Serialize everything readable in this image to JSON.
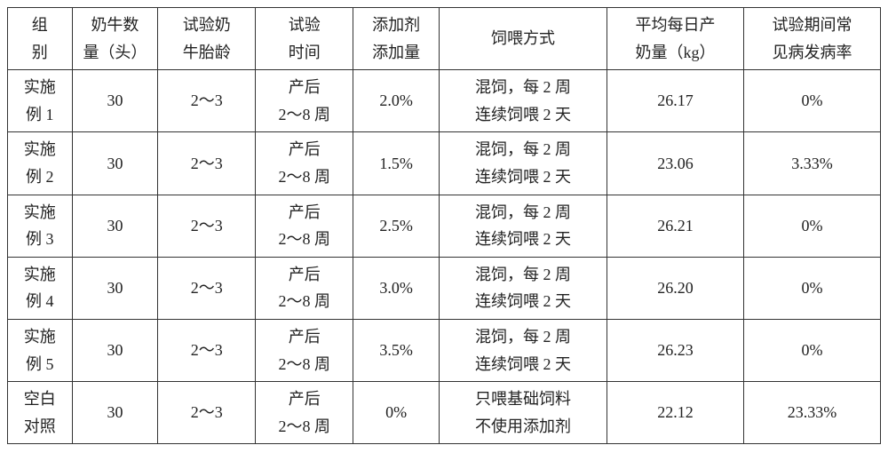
{
  "columns": [
    {
      "l1": "组",
      "l2": "别"
    },
    {
      "l1": "奶牛数",
      "l2": "量（头）"
    },
    {
      "l1": "试验奶",
      "l2": "牛胎龄"
    },
    {
      "l1": "试验",
      "l2": "时间"
    },
    {
      "l1": "添加剂",
      "l2": "添加量"
    },
    {
      "single": "饲喂方式"
    },
    {
      "l1": "平均每日产",
      "l2": "奶量（kg）"
    },
    {
      "l1": "试验期间常",
      "l2": "见病发病率"
    }
  ],
  "rows": [
    {
      "group_l1": "实施",
      "group_l2": "例 1",
      "count": "30",
      "age": "2～3",
      "time_l1": "产后",
      "time_l2": "2～8 周",
      "additive": "2.0%",
      "feed_l1": "混饲，每 2 周",
      "feed_l2": "连续饲喂 2 天",
      "milk": "26.17",
      "disease": "0%"
    },
    {
      "group_l1": "实施",
      "group_l2": "例 2",
      "count": "30",
      "age": "2～3",
      "time_l1": "产后",
      "time_l2": "2～8 周",
      "additive": "1.5%",
      "feed_l1": "混饲，每 2 周",
      "feed_l2": "连续饲喂 2 天",
      "milk": "23.06",
      "disease": "3.33%"
    },
    {
      "group_l1": "实施",
      "group_l2": "例 3",
      "count": "30",
      "age": "2～3",
      "time_l1": "产后",
      "time_l2": "2～8 周",
      "additive": "2.5%",
      "feed_l1": "混饲，每 2 周",
      "feed_l2": "连续饲喂 2 天",
      "milk": "26.21",
      "disease": "0%"
    },
    {
      "group_l1": "实施",
      "group_l2": "例 4",
      "count": "30",
      "age": "2～3",
      "time_l1": "产后",
      "time_l2": "2～8 周",
      "additive": "3.0%",
      "feed_l1": "混饲，每 2 周",
      "feed_l2": "连续饲喂 2 天",
      "milk": "26.20",
      "disease": "0%"
    },
    {
      "group_l1": "实施",
      "group_l2": "例 5",
      "count": "30",
      "age": "2～3",
      "time_l1": "产后",
      "time_l2": "2～8 周",
      "additive": "3.5%",
      "feed_l1": "混饲，每 2 周",
      "feed_l2": "连续饲喂 2 天",
      "milk": "26.23",
      "disease": "0%"
    },
    {
      "group_l1": "空白",
      "group_l2": "对照",
      "count": "30",
      "age": "2～3",
      "time_l1": "产后",
      "time_l2": "2～8 周",
      "additive": "0%",
      "feed_l1": "只喂基础饲料",
      "feed_l2": "不使用添加剂",
      "milk": "22.12",
      "disease": "23.33%"
    }
  ]
}
